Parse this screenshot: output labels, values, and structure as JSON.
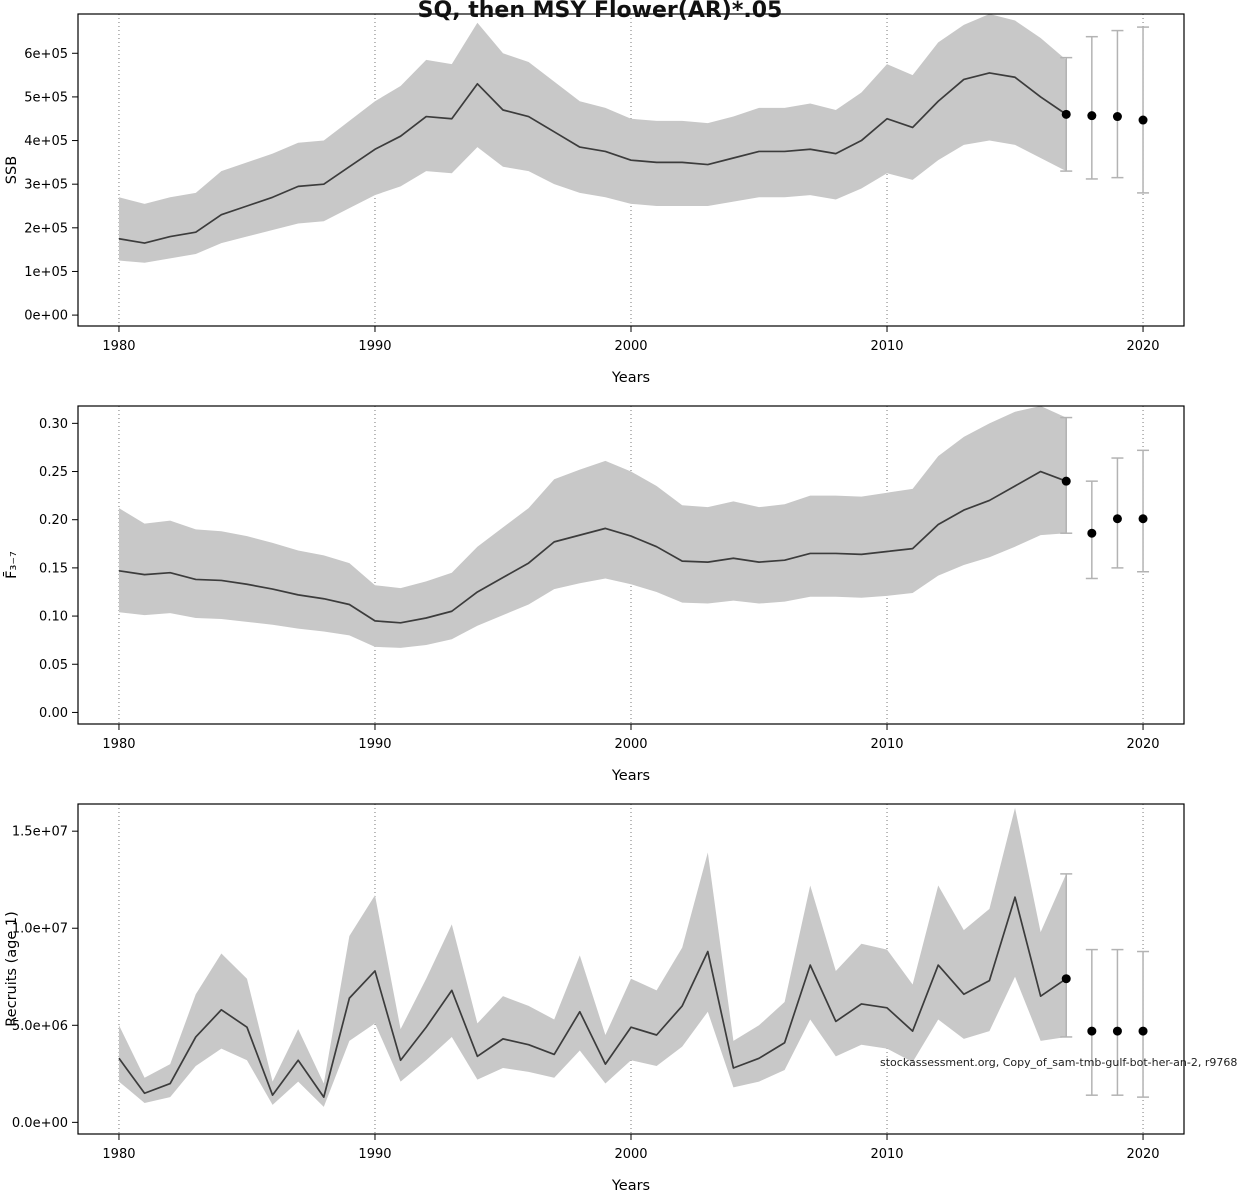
{
  "title": "SQ, then MSY Flower(AR)*.05",
  "footnote": "stockassessment.org, Copy_of_sam-tmb-gulf-bot-her-an-2, r9768",
  "colors": {
    "band": "#c8c8c8",
    "line": "#3c3c3c",
    "error_bar": "#b3b3b3",
    "point": "#000000",
    "grid": "#777777",
    "axis": "#000000"
  },
  "chart_data": [
    {
      "type": "line",
      "title": "",
      "xlabel": "Years",
      "ylabel": "SSB",
      "xlim": [
        1978.4,
        2021.6
      ],
      "ylim": [
        -25000,
        690000
      ],
      "xticks": [
        1980,
        1990,
        2000,
        2010,
        2020
      ],
      "yticks": [
        0,
        100000,
        200000,
        300000,
        400000,
        500000,
        600000
      ],
      "ytick_labels": [
        "0e+00",
        "1e+05",
        "2e+05",
        "3e+05",
        "4e+05",
        "5e+05",
        "6e+05"
      ],
      "x": [
        1980,
        1981,
        1982,
        1983,
        1984,
        1985,
        1986,
        1987,
        1988,
        1989,
        1990,
        1991,
        1992,
        1993,
        1994,
        1995,
        1996,
        1997,
        1998,
        1999,
        2000,
        2001,
        2002,
        2003,
        2004,
        2005,
        2006,
        2007,
        2008,
        2009,
        2010,
        2011,
        2012,
        2013,
        2014,
        2015,
        2016,
        2017
      ],
      "values": [
        175000,
        165000,
        180000,
        190000,
        230000,
        250000,
        270000,
        295000,
        300000,
        340000,
        380000,
        410000,
        455000,
        450000,
        530000,
        470000,
        455000,
        420000,
        385000,
        375000,
        355000,
        350000,
        350000,
        345000,
        360000,
        375000,
        375000,
        380000,
        370000,
        400000,
        450000,
        430000,
        490000,
        540000,
        555000,
        545000,
        500000,
        460000
      ],
      "lower": [
        125000,
        120000,
        130000,
        140000,
        165000,
        180000,
        195000,
        210000,
        215000,
        245000,
        275000,
        295000,
        330000,
        325000,
        385000,
        340000,
        330000,
        300000,
        280000,
        270000,
        255000,
        250000,
        250000,
        250000,
        260000,
        270000,
        270000,
        275000,
        265000,
        290000,
        325000,
        310000,
        355000,
        390000,
        400000,
        390000,
        360000,
        330000
      ],
      "upper": [
        270000,
        255000,
        270000,
        280000,
        330000,
        350000,
        370000,
        395000,
        400000,
        445000,
        490000,
        525000,
        585000,
        575000,
        670000,
        600000,
        580000,
        535000,
        490000,
        475000,
        450000,
        445000,
        445000,
        440000,
        455000,
        475000,
        475000,
        485000,
        470000,
        510000,
        575000,
        550000,
        625000,
        665000,
        690000,
        675000,
        635000,
        585000
      ],
      "forecast": {
        "x": [
          2017,
          2018,
          2019,
          2020
        ],
        "y": [
          460000,
          457000,
          455000,
          447000
        ],
        "lower": [
          330000,
          312000,
          315000,
          280000
        ],
        "upper": [
          590000,
          638000,
          652000,
          660000
        ]
      }
    },
    {
      "type": "line",
      "title": "",
      "xlabel": "Years",
      "ylabel": "F̄₃₋₇",
      "xlim": [
        1978.4,
        2021.6
      ],
      "ylim": [
        -0.012,
        0.318
      ],
      "xticks": [
        1980,
        1990,
        2000,
        2010,
        2020
      ],
      "yticks": [
        0,
        0.05,
        0.1,
        0.15,
        0.2,
        0.25,
        0.3
      ],
      "ytick_labels": [
        "0.00",
        "0.05",
        "0.10",
        "0.15",
        "0.20",
        "0.25",
        "0.30"
      ],
      "x": [
        1980,
        1981,
        1982,
        1983,
        1984,
        1985,
        1986,
        1987,
        1988,
        1989,
        1990,
        1991,
        1992,
        1993,
        1994,
        1995,
        1996,
        1997,
        1998,
        1999,
        2000,
        2001,
        2002,
        2003,
        2004,
        2005,
        2006,
        2007,
        2008,
        2009,
        2010,
        2011,
        2012,
        2013,
        2014,
        2015,
        2016,
        2017
      ],
      "values": [
        0.147,
        0.143,
        0.145,
        0.138,
        0.137,
        0.133,
        0.128,
        0.122,
        0.118,
        0.112,
        0.095,
        0.093,
        0.098,
        0.105,
        0.125,
        0.14,
        0.155,
        0.177,
        0.184,
        0.191,
        0.183,
        0.172,
        0.157,
        0.156,
        0.16,
        0.156,
        0.158,
        0.165,
        0.165,
        0.164,
        0.167,
        0.17,
        0.195,
        0.21,
        0.22,
        0.235,
        0.25,
        0.24
      ],
      "lower": [
        0.104,
        0.101,
        0.103,
        0.098,
        0.097,
        0.094,
        0.091,
        0.087,
        0.084,
        0.08,
        0.068,
        0.067,
        0.07,
        0.076,
        0.09,
        0.101,
        0.112,
        0.128,
        0.134,
        0.139,
        0.133,
        0.125,
        0.114,
        0.113,
        0.116,
        0.113,
        0.115,
        0.12,
        0.12,
        0.119,
        0.121,
        0.124,
        0.142,
        0.153,
        0.161,
        0.172,
        0.184,
        0.186
      ],
      "upper": [
        0.212,
        0.196,
        0.199,
        0.19,
        0.188,
        0.183,
        0.176,
        0.168,
        0.163,
        0.155,
        0.132,
        0.129,
        0.136,
        0.145,
        0.172,
        0.192,
        0.212,
        0.242,
        0.252,
        0.261,
        0.25,
        0.235,
        0.215,
        0.213,
        0.219,
        0.213,
        0.216,
        0.225,
        0.225,
        0.224,
        0.228,
        0.232,
        0.266,
        0.286,
        0.3,
        0.312,
        0.318,
        0.306
      ],
      "forecast": {
        "x": [
          2017,
          2018,
          2019,
          2020
        ],
        "y": [
          0.24,
          0.186,
          0.201,
          0.201
        ],
        "lower": [
          0.186,
          0.139,
          0.15,
          0.146
        ],
        "upper": [
          0.306,
          0.24,
          0.264,
          0.272
        ]
      }
    },
    {
      "type": "line",
      "title": "",
      "xlabel": "Years",
      "ylabel": "Recruits (age 1)",
      "xlim": [
        1978.4,
        2021.6
      ],
      "ylim": [
        -600000,
        16400000
      ],
      "xticks": [
        1980,
        1990,
        2000,
        2010,
        2020
      ],
      "yticks": [
        0,
        5000000,
        10000000,
        15000000
      ],
      "ytick_labels": [
        "0.0e+00",
        "5.0e+06",
        "1.0e+07",
        "1.5e+07"
      ],
      "x": [
        1980,
        1981,
        1982,
        1983,
        1984,
        1985,
        1986,
        1987,
        1988,
        1989,
        1990,
        1991,
        1992,
        1993,
        1994,
        1995,
        1996,
        1997,
        1998,
        1999,
        2000,
        2001,
        2002,
        2003,
        2004,
        2005,
        2006,
        2007,
        2008,
        2009,
        2010,
        2011,
        2012,
        2013,
        2014,
        2015,
        2016,
        2017
      ],
      "values": [
        3300000,
        1500000,
        2000000,
        4400000,
        5800000,
        4900000,
        1400000,
        3200000,
        1300000,
        6400000,
        7800000,
        3200000,
        4900000,
        6800000,
        3400000,
        4300000,
        4000000,
        3500000,
        5700000,
        3000000,
        4900000,
        4500000,
        6000000,
        8800000,
        2800000,
        3300000,
        4100000,
        8100000,
        5200000,
        6100000,
        5900000,
        4700000,
        8100000,
        6600000,
        7300000,
        11600000,
        6500000,
        7400000
      ],
      "lower": [
        2100000,
        1000000,
        1300000,
        2900000,
        3800000,
        3200000,
        900000,
        2100000,
        800000,
        4200000,
        5100000,
        2100000,
        3200000,
        4400000,
        2200000,
        2800000,
        2600000,
        2300000,
        3700000,
        2000000,
        3200000,
        2900000,
        3900000,
        5700000,
        1800000,
        2100000,
        2700000,
        5300000,
        3400000,
        4000000,
        3800000,
        3100000,
        5300000,
        4300000,
        4700000,
        7500000,
        4200000,
        4400000
      ],
      "upper": [
        5000000,
        2300000,
        3000000,
        6600000,
        8700000,
        7400000,
        2100000,
        4800000,
        2000000,
        9600000,
        11700000,
        4800000,
        7400000,
        10200000,
        5100000,
        6500000,
        6000000,
        5300000,
        8600000,
        4500000,
        7400000,
        6800000,
        9000000,
        13900000,
        4200000,
        5000000,
        6200000,
        12200000,
        7800000,
        9200000,
        8900000,
        7100000,
        12200000,
        9900000,
        11000000,
        16200000,
        9800000,
        12800000
      ],
      "forecast": {
        "x": [
          2017,
          2018,
          2019,
          2020
        ],
        "y": [
          7400000,
          4700000,
          4700000,
          4700000
        ],
        "lower": [
          4400000,
          1400000,
          1400000,
          1300000
        ],
        "upper": [
          12800000,
          8900000,
          8900000,
          8800000
        ]
      }
    }
  ]
}
